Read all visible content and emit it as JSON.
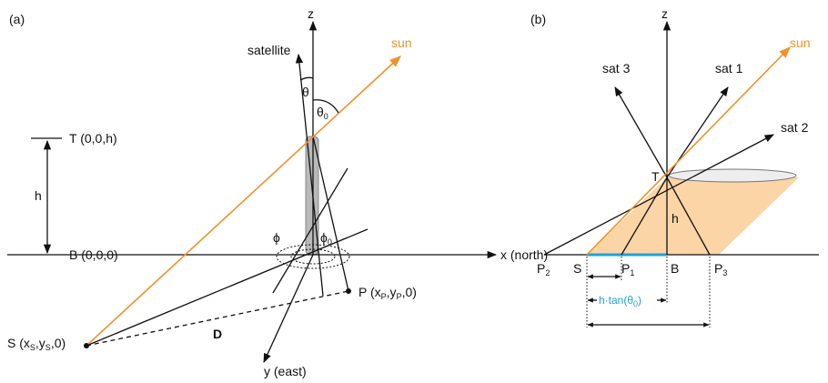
{
  "panel_a": {
    "label": "(a)",
    "z_axis": "z",
    "x_axis": "x (north)",
    "y_axis": "y (east)",
    "satellite": "satellite",
    "sun": "sun",
    "theta": "θ",
    "theta0": [
      "θ",
      "0"
    ],
    "phi": "ϕ",
    "phi0": [
      "ϕ",
      "0"
    ],
    "h": "h",
    "T": "T (0,0,h)",
    "B": "B (0,0,0)",
    "P": [
      "P (x",
      "P",
      ",y",
      "P",
      ",0)"
    ],
    "S": [
      "S (x",
      "S",
      ",y",
      "S",
      ",0)"
    ],
    "D": "D"
  },
  "panel_b": {
    "label": "(b)",
    "z_axis": "z",
    "sun": "sun",
    "sat1": "sat 1",
    "sat2": "sat 2",
    "sat3": "sat 3",
    "T": "T",
    "h": "h",
    "P2": [
      "P",
      "2"
    ],
    "S": "S",
    "P1": [
      "P",
      "1"
    ],
    "B": "B",
    "P3": [
      "P",
      "3"
    ],
    "dimension": [
      "h·tan(θ",
      "0",
      ")"
    ]
  }
}
